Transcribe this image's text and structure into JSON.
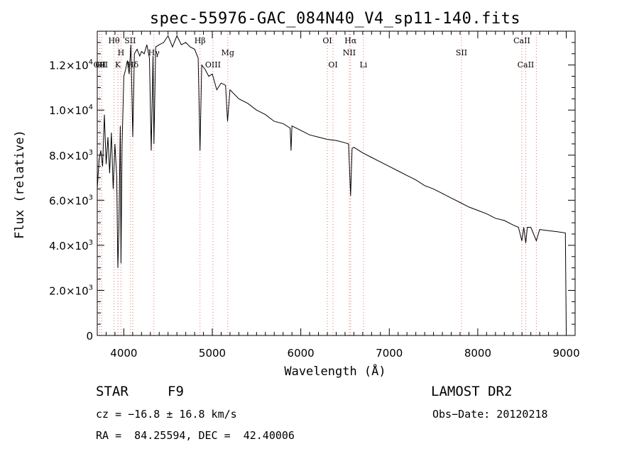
{
  "chart_data": {
    "type": "line",
    "title": "spec-55976-GAC_084N40_V4_sp11-140.fits",
    "xlabel": "Wavelength (Å)",
    "ylabel": "Flux (relative)",
    "xlim": [
      3700,
      9100
    ],
    "ylim": [
      0,
      13500
    ],
    "x_ticks": [
      4000,
      5000,
      6000,
      7000,
      8000,
      9000
    ],
    "x_tick_labels": [
      "4000",
      "5000",
      "6000",
      "7000",
      "8000",
      "9000"
    ],
    "y_ticks": [
      0,
      2000,
      4000,
      6000,
      8000,
      10000,
      12000
    ],
    "y_tick_labels": [
      {
        "mantissa": "0",
        "exp": ""
      },
      {
        "mantissa": "2.0×10",
        "exp": "3"
      },
      {
        "mantissa": "4.0×10",
        "exp": "3"
      },
      {
        "mantissa": "6.0×10",
        "exp": "3"
      },
      {
        "mantissa": "8.0×10",
        "exp": "3"
      },
      {
        "mantissa": "1.0×10",
        "exp": "4"
      },
      {
        "mantissa": "1.2×10",
        "exp": "4"
      }
    ],
    "grid": false,
    "series": [
      {
        "x": [
          3700,
          3720,
          3740,
          3760,
          3780,
          3800,
          3820,
          3840,
          3860,
          3880,
          3900,
          3920,
          3933,
          3945,
          3960,
          3968,
          3980,
          4000,
          4020,
          4040,
          4060,
          4080,
          4101,
          4120,
          4150,
          4180,
          4200,
          4230,
          4260,
          4290,
          4310,
          4330,
          4340,
          4360,
          4400,
          4450,
          4500,
          4550,
          4600,
          4650,
          4700,
          4750,
          4800,
          4840,
          4861,
          4880,
          4920,
          4960,
          5000,
          5050,
          5100,
          5150,
          5172,
          5200,
          5250,
          5300,
          5400,
          5500,
          5600,
          5700,
          5800,
          5880,
          5890,
          5900,
          6000,
          6100,
          6200,
          6300,
          6400,
          6500,
          6540,
          6563,
          6580,
          6600,
          6700,
          6800,
          6900,
          7000,
          7100,
          7200,
          7300,
          7400,
          7500,
          7600,
          7700,
          7800,
          7900,
          8000,
          8100,
          8200,
          8300,
          8400,
          8460,
          8498,
          8520,
          8542,
          8560,
          8600,
          8662,
          8700,
          8800,
          8900,
          8990,
          9000
        ],
        "y": [
          6500,
          7800,
          8200,
          7500,
          9800,
          7600,
          8800,
          7200,
          9000,
          6500,
          8500,
          7000,
          3000,
          4800,
          9300,
          3200,
          8400,
          11500,
          11800,
          12200,
          11600,
          12900,
          8800,
          12500,
          12700,
          12400,
          12600,
          12500,
          12900,
          12300,
          8200,
          12400,
          8500,
          12800,
          12900,
          13000,
          13300,
          12800,
          13300,
          12900,
          13000,
          12800,
          12700,
          12300,
          8200,
          12000,
          11800,
          11500,
          11600,
          10900,
          11200,
          11100,
          9500,
          10900,
          10700,
          10500,
          10300,
          10000,
          9800,
          9500,
          9400,
          9200,
          8200,
          9300,
          9100,
          8900,
          8800,
          8700,
          8650,
          8550,
          8500,
          6200,
          8300,
          8350,
          8100,
          7900,
          7700,
          7500,
          7300,
          7100,
          6900,
          6650,
          6500,
          6300,
          6100,
          5900,
          5700,
          5550,
          5400,
          5200,
          5100,
          4900,
          4800,
          4200,
          4800,
          4100,
          4800,
          4800,
          4200,
          4700,
          4650,
          4600,
          4550,
          200
        ]
      }
    ],
    "line_markers": [
      {
        "x": 3727,
        "label": "OII",
        "row": 2
      },
      {
        "x": 3750,
        "label": "OII",
        "row": 2
      },
      {
        "x": 3889,
        "label": "Hθ",
        "row": 0
      },
      {
        "x": 3933,
        "label": "K",
        "row": 2
      },
      {
        "x": 3968,
        "label": "H",
        "row": 1
      },
      {
        "x": 4072,
        "label": "SII",
        "row": 0
      },
      {
        "x": 4101,
        "label": "Hδ",
        "row": 2
      },
      {
        "x": 4340,
        "label": "Hγ",
        "row": 1
      },
      {
        "x": 4861,
        "label": "Hβ",
        "row": 0
      },
      {
        "x": 5007,
        "label": "OIII",
        "row": 2
      },
      {
        "x": 5175,
        "label": "Mg",
        "row": 1
      },
      {
        "x": 6300,
        "label": "OI",
        "row": 0
      },
      {
        "x": 6364,
        "label": "OI",
        "row": 2
      },
      {
        "x": 6548,
        "label": "NII",
        "row": 1
      },
      {
        "x": 6563,
        "label": "Hα",
        "row": 0
      },
      {
        "x": 6708,
        "label": "Li",
        "row": 2
      },
      {
        "x": 7816,
        "label": "SII",
        "row": 1
      },
      {
        "x": 8498,
        "label": "CaII",
        "row": 0
      },
      {
        "x": 8542,
        "label": "CaII",
        "row": 2
      },
      {
        "x": 8662,
        "label": "",
        "row": 2
      }
    ]
  },
  "info": {
    "object_type": "STAR",
    "subclass": "F9",
    "survey": "LAMOST DR2",
    "redshift": "cz = −16.8 ± 16.8 km/s",
    "obs_date": "Obs−Date: 20120218",
    "coords": "RA =  84.25594, DEC =  42.40006"
  }
}
